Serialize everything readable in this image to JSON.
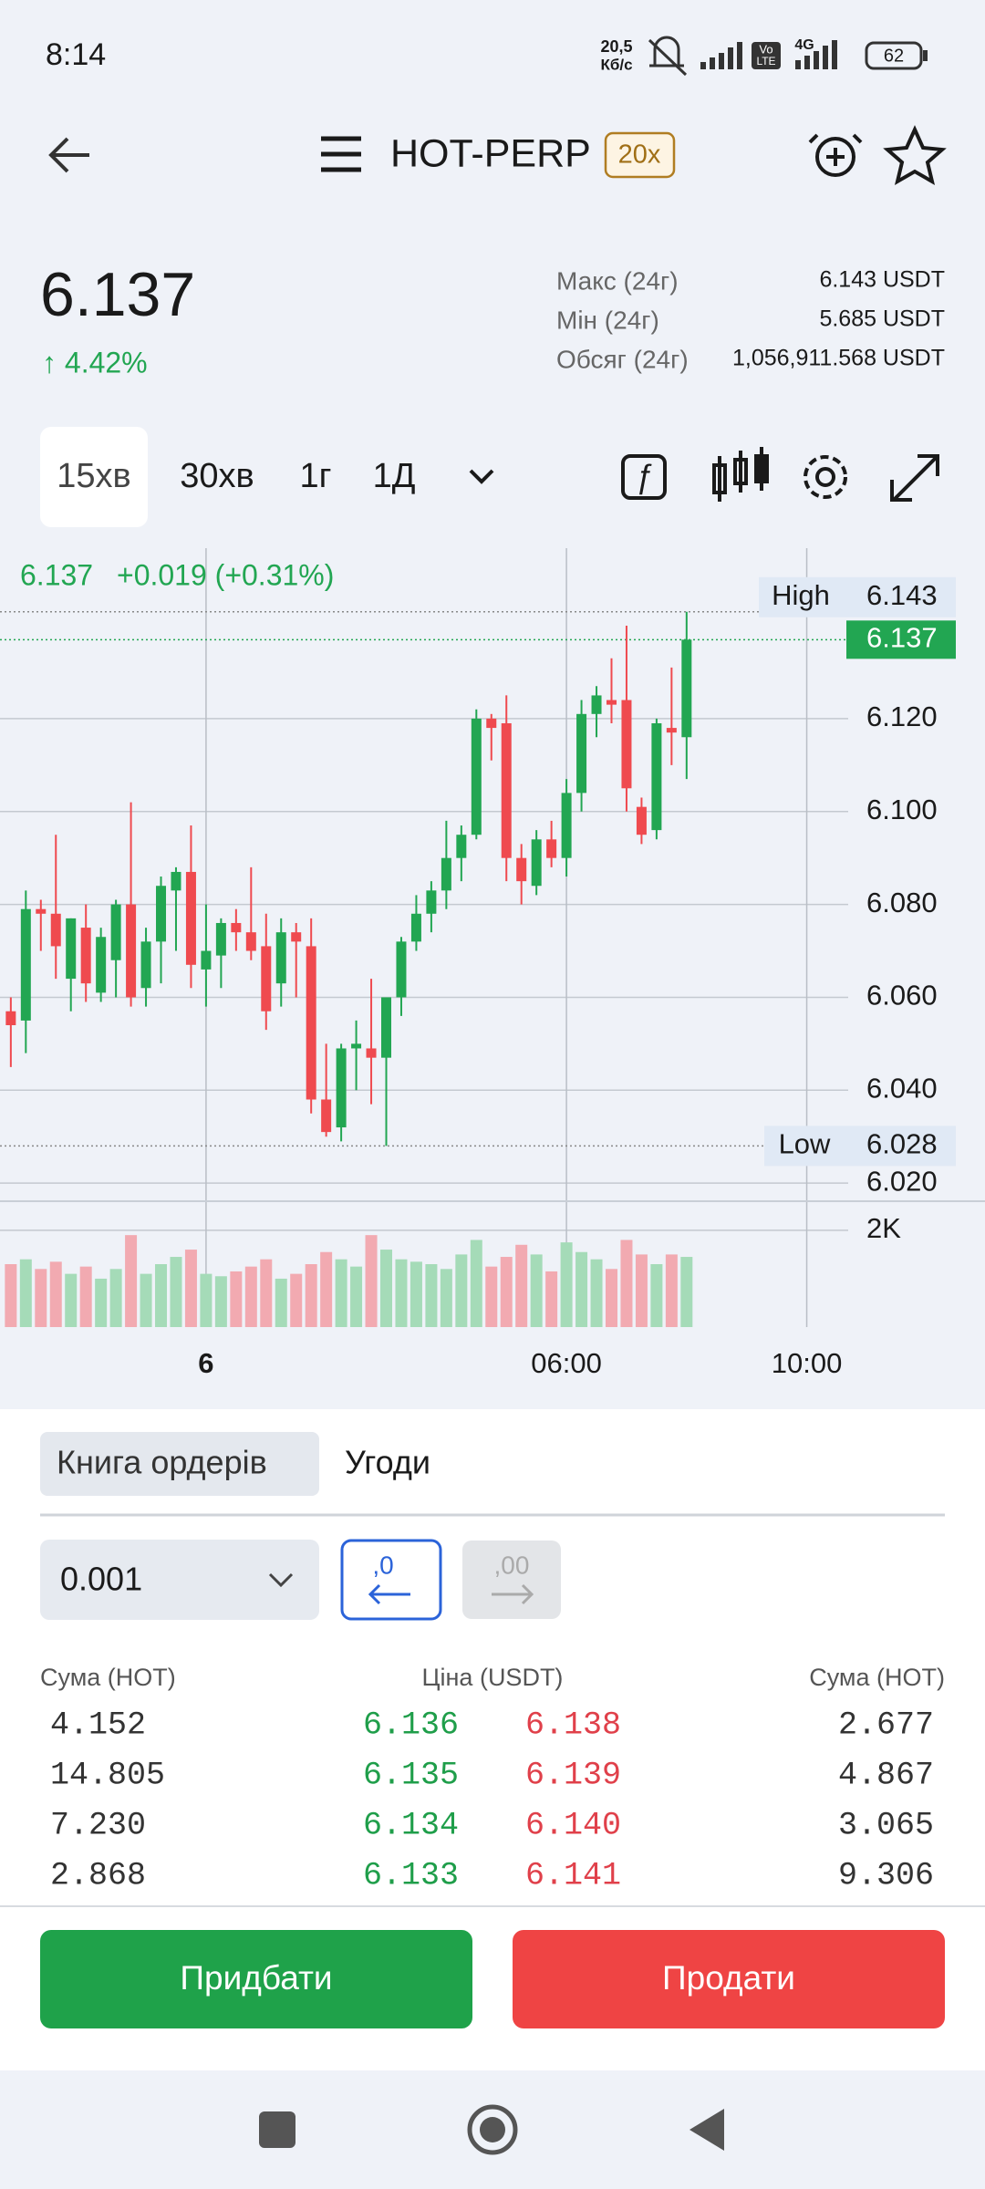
{
  "status_bar": {
    "time": "8:14",
    "speed": "20,5",
    "speed_unit": "Кб/с",
    "volte": [
      "Vo",
      "LTE"
    ],
    "network": "4G",
    "battery": "62"
  },
  "header": {
    "symbol": "HOT-PERP",
    "leverage": "20x"
  },
  "ticker": {
    "price": "6.137",
    "change": "↑ 4.42%",
    "stats": [
      {
        "label": "Макс (24г)",
        "value": "6.143 USDT"
      },
      {
        "label": "Мін (24г)",
        "value": "5.685 USDT"
      },
      {
        "label": "Обсяг (24г)",
        "value": "1,056,911.568 USDT"
      }
    ]
  },
  "intervals": [
    "15хв",
    "30хв",
    "1г",
    "1Д"
  ],
  "chart": {
    "legend_price": "6.137",
    "legend_change": "+0.019 (+0.31%)",
    "up_color": "#22a652",
    "down_color": "#ef4a4f",
    "up_volume_color": "#a5dbb8",
    "down_volume_color": "#f2aab1",
    "xlim": [
      -3.43,
      10.69
    ],
    "ylim": [
      6.0163,
      6.1567
    ],
    "xticks": [
      {
        "value": 0,
        "label": "6"
      },
      {
        "value": 6,
        "label": "06:00"
      },
      {
        "value": 10,
        "label": "10:00"
      }
    ],
    "yticks": [
      {
        "value": 6.12,
        "label": "6.120"
      },
      {
        "value": 6.1,
        "label": "6.100"
      },
      {
        "value": 6.08,
        "label": "6.080"
      },
      {
        "value": 6.06,
        "label": "6.060"
      },
      {
        "value": 6.04,
        "label": "6.040"
      },
      {
        "value": 6.02,
        "label": "6.020"
      }
    ],
    "high": {
      "label": "High",
      "value": 6.143
    },
    "low": {
      "label": "Low",
      "value": 6.028
    },
    "last": 6.137,
    "volume_ylim": [
      0,
      2600
    ],
    "volume_ticks": [
      {
        "value": 2000,
        "label": "2K"
      }
    ],
    "x": [
      -3.25,
      -3,
      -2.75,
      -2.5,
      -2.25,
      -2,
      -1.75,
      -1.5,
      -1.25,
      -1,
      -0.75,
      -0.5,
      -0.25,
      0,
      0.25,
      0.5,
      0.75,
      1,
      1.25,
      1.5,
      1.75,
      2,
      2.25,
      2.5,
      2.75,
      3,
      3.25,
      3.5,
      3.75,
      4,
      4.25,
      4.5,
      4.75,
      5,
      5.25,
      5.5,
      5.75,
      6,
      6.25,
      6.5,
      6.75,
      7,
      7.25,
      7.5,
      7.75,
      8
    ],
    "candles": [
      [
        6.057,
        6.06,
        6.045,
        6.054
      ],
      [
        6.055,
        6.083,
        6.048,
        6.079
      ],
      [
        6.079,
        6.081,
        6.07,
        6.078
      ],
      [
        6.078,
        6.095,
        6.064,
        6.071
      ],
      [
        6.064,
        6.077,
        6.057,
        6.077
      ],
      [
        6.075,
        6.08,
        6.059,
        6.063
      ],
      [
        6.061,
        6.075,
        6.059,
        6.073
      ],
      [
        6.068,
        6.081,
        6.06,
        6.08
      ],
      [
        6.08,
        6.102,
        6.058,
        6.06
      ],
      [
        6.062,
        6.075,
        6.058,
        6.072
      ],
      [
        6.072,
        6.086,
        6.063,
        6.084
      ],
      [
        6.083,
        6.088,
        6.07,
        6.087
      ],
      [
        6.087,
        6.097,
        6.062,
        6.067
      ],
      [
        6.066,
        6.08,
        6.058,
        6.07
      ],
      [
        6.069,
        6.077,
        6.062,
        6.076
      ],
      [
        6.076,
        6.079,
        6.07,
        6.074
      ],
      [
        6.074,
        6.088,
        6.068,
        6.07
      ],
      [
        6.071,
        6.078,
        6.053,
        6.057
      ],
      [
        6.063,
        6.077,
        6.058,
        6.074
      ],
      [
        6.074,
        6.076,
        6.06,
        6.072
      ],
      [
        6.071,
        6.077,
        6.035,
        6.038
      ],
      [
        6.038,
        6.05,
        6.03,
        6.031
      ],
      [
        6.032,
        6.05,
        6.029,
        6.049
      ],
      [
        6.049,
        6.055,
        6.04,
        6.05
      ],
      [
        6.049,
        6.064,
        6.037,
        6.047
      ],
      [
        6.047,
        6.06,
        6.028,
        6.06
      ],
      [
        6.06,
        6.073,
        6.056,
        6.072
      ],
      [
        6.072,
        6.082,
        6.07,
        6.078
      ],
      [
        6.078,
        6.085,
        6.074,
        6.083
      ],
      [
        6.083,
        6.098,
        6.079,
        6.09
      ],
      [
        6.09,
        6.097,
        6.085,
        6.095
      ],
      [
        6.095,
        6.122,
        6.094,
        6.12
      ],
      [
        6.12,
        6.121,
        6.111,
        6.118
      ],
      [
        6.119,
        6.125,
        6.085,
        6.09
      ],
      [
        6.09,
        6.093,
        6.08,
        6.085
      ],
      [
        6.084,
        6.096,
        6.082,
        6.094
      ],
      [
        6.094,
        6.098,
        6.088,
        6.09
      ],
      [
        6.09,
        6.107,
        6.086,
        6.104
      ],
      [
        6.104,
        6.124,
        6.1,
        6.121
      ],
      [
        6.121,
        6.127,
        6.116,
        6.125
      ],
      [
        6.124,
        6.133,
        6.119,
        6.123
      ],
      [
        6.124,
        6.14,
        6.1,
        6.105
      ],
      [
        6.101,
        6.103,
        6.093,
        6.095
      ],
      [
        6.096,
        6.12,
        6.094,
        6.119
      ],
      [
        6.118,
        6.131,
        6.11,
        6.117
      ],
      [
        6.116,
        6.143,
        6.107,
        6.137
      ]
    ],
    "volume": [
      1300,
      1400,
      1200,
      1350,
      1100,
      1250,
      1000,
      1200,
      1900,
      1100,
      1300,
      1450,
      1600,
      1100,
      1050,
      1150,
      1250,
      1400,
      1000,
      1100,
      1300,
      1550,
      1400,
      1250,
      1900,
      1600,
      1400,
      1350,
      1300,
      1200,
      1500,
      1800,
      1250,
      1450,
      1700,
      1500,
      1150,
      1750,
      1550,
      1400,
      1200,
      1800,
      1500,
      1300,
      1500,
      1450
    ]
  },
  "tabs": [
    "Книга ордерів",
    "Угоди"
  ],
  "precision": "0.001",
  "precision_buttons": [
    ",0",
    ",00"
  ],
  "orderbook": {
    "headers": [
      "Сума (HOT)",
      "Ціна (USDT)",
      "Сума (HOT)"
    ],
    "rows": [
      [
        "4.152",
        "6.136",
        "6.138",
        "2.677"
      ],
      [
        "14.805",
        "6.135",
        "6.139",
        "4.867"
      ],
      [
        "7.230",
        "6.134",
        "6.140",
        "3.065"
      ],
      [
        "2.868",
        "6.133",
        "6.141",
        "9.306"
      ]
    ]
  },
  "actions": {
    "buy": "Придбати",
    "sell": "Продати"
  }
}
